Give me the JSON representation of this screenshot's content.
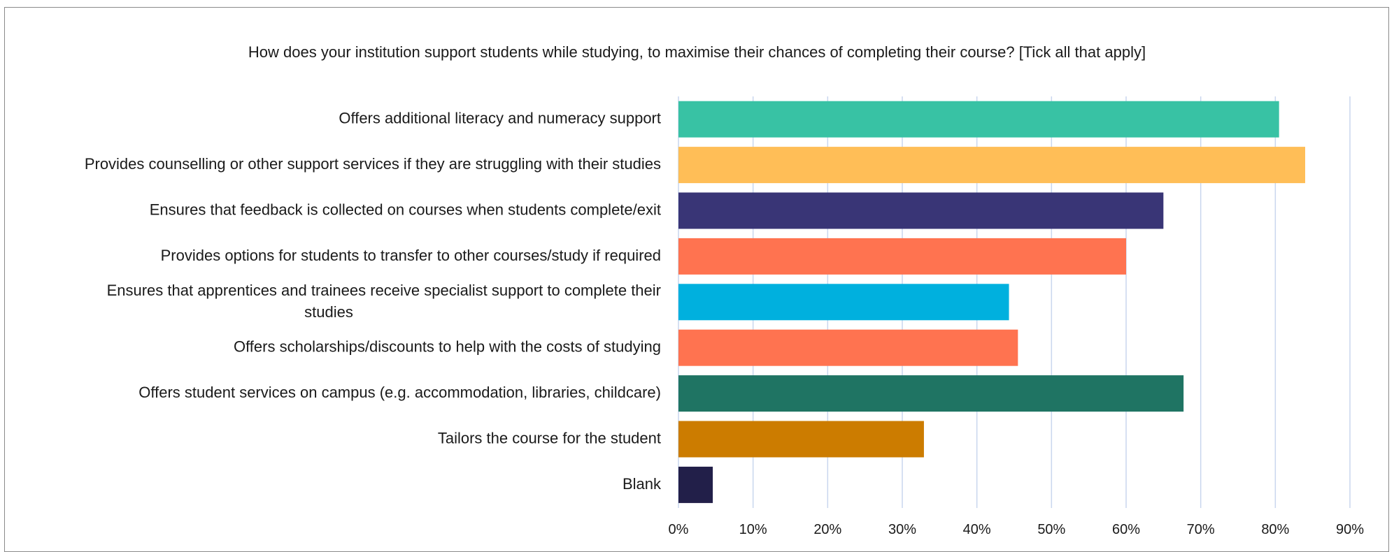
{
  "chart_data": {
    "type": "bar",
    "orientation": "horizontal",
    "title": "How does your institution support students while studying, to maximise their chances of completing their course? [Tick all that apply]",
    "categories": [
      "Offers additional literacy and numeracy support",
      "Provides counselling or other support services if they are struggling with their studies",
      "Ensures that feedback is collected on courses when students complete/exit",
      "Provides options for students to transfer to other courses/study if required",
      "Ensures that apprentices and trainees receive specialist support to complete their studies",
      "Offers scholarships/discounts to help with the costs of studying",
      "Offers student services on campus (e.g. accommodation, libraries, childcare)",
      "Tailors the course for the student",
      "Blank"
    ],
    "category_lines": [
      [
        "Offers additional literacy and numeracy support"
      ],
      [
        "Provides counselling or other support services if they are struggling with their studies"
      ],
      [
        "Ensures that feedback is collected on courses when students complete/exit"
      ],
      [
        "Provides options for students to transfer to other courses/study if required"
      ],
      [
        "Ensures that apprentices and trainees receive specialist support to complete their",
        "studies"
      ],
      [
        "Offers scholarships/discounts to help with the costs of studying"
      ],
      [
        "Offers student services on campus (e.g. accommodation, libraries, childcare)"
      ],
      [
        "Tailors the course for the student"
      ],
      [
        "Blank"
      ]
    ],
    "values": [
      80.5,
      84.0,
      65.0,
      60.0,
      44.3,
      45.5,
      67.7,
      32.9,
      4.6
    ],
    "bar_colors": [
      "#38c2a4",
      "#ffbe57",
      "#393576",
      "#ff7350",
      "#00b0de",
      "#ff7350",
      "#1f7463",
      "#cc7c00",
      "#221f49"
    ],
    "xlim": [
      0,
      90
    ],
    "x_ticks": [
      0,
      10,
      20,
      30,
      40,
      50,
      60,
      70,
      80,
      90
    ],
    "x_tick_labels": [
      "0%",
      "10%",
      "20%",
      "30%",
      "40%",
      "50%",
      "60%",
      "70%",
      "80%",
      "90%"
    ],
    "grid": "vertical",
    "grid_color": "#c9d6ee",
    "legend": "none"
  }
}
